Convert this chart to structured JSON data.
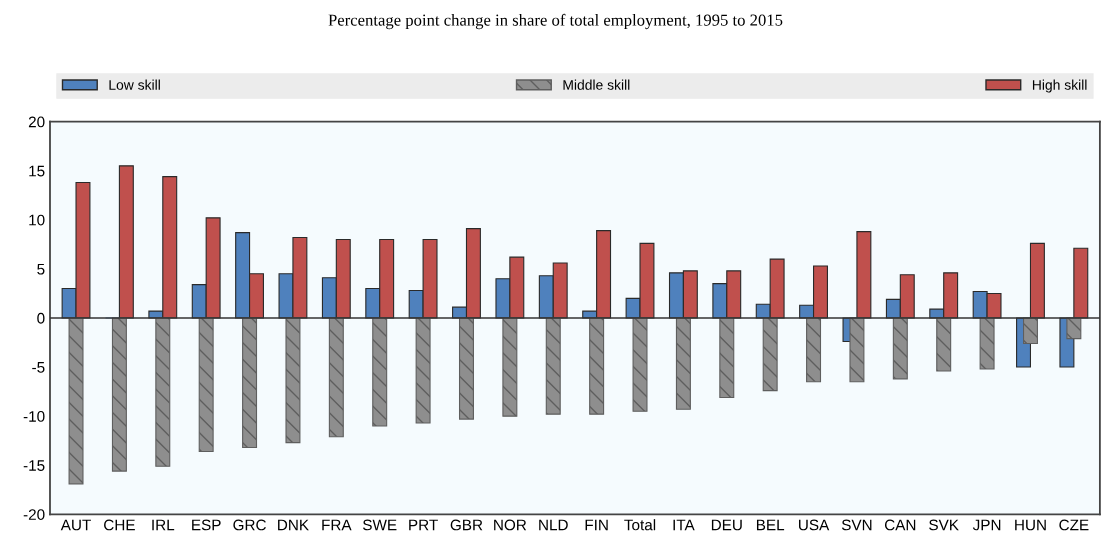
{
  "chart_data": {
    "type": "bar",
    "title": "Percentage point change in share of total employment, 1995 to 2015",
    "categories": [
      "AUT",
      "CHE",
      "IRL",
      "ESP",
      "GRC",
      "DNK",
      "FRA",
      "SWE",
      "PRT",
      "GBR",
      "NOR",
      "NLD",
      "FIN",
      "Total",
      "ITA",
      "DEU",
      "BEL",
      "USA",
      "SVN",
      "CAN",
      "SVK",
      "JPN",
      "HUN",
      "CZE"
    ],
    "series": [
      {
        "name": "Low skill",
        "color": "#4f81bd",
        "values": [
          3.0,
          0,
          0.7,
          3.4,
          8.7,
          4.5,
          4.1,
          3.0,
          2.8,
          1.1,
          4.0,
          4.3,
          0.7,
          2.0,
          4.6,
          3.5,
          1.4,
          1.3,
          -2.4,
          1.9,
          0.9,
          2.7,
          -5.0,
          -5.0
        ]
      },
      {
        "name": "Middle skill",
        "color": "#5e5e5e",
        "values": [
          -16.9,
          -15.6,
          -15.1,
          -13.6,
          -13.2,
          -12.7,
          -12.1,
          -11.0,
          -10.7,
          -10.3,
          -10.0,
          -9.8,
          -9.8,
          -9.5,
          -9.3,
          -8.1,
          -7.4,
          -6.5,
          -6.5,
          -6.2,
          -5.4,
          -5.2,
          -2.6,
          -2.1
        ]
      },
      {
        "name": "High skill",
        "color": "#c0504d",
        "values": [
          13.8,
          15.5,
          14.4,
          10.2,
          4.5,
          8.2,
          8.0,
          8.0,
          8.0,
          9.1,
          6.2,
          5.6,
          8.9,
          7.6,
          4.8,
          4.8,
          6.0,
          5.3,
          8.8,
          4.4,
          4.6,
          2.5,
          7.6,
          7.1
        ]
      }
    ],
    "ylim": [
      -20,
      20
    ],
    "yticks": [
      -20,
      -15,
      -10,
      -5,
      0,
      5,
      10,
      15,
      20
    ],
    "ref_lines": [
      {
        "axis": "y",
        "value": 0,
        "color": "#333333"
      }
    ],
    "grid": false,
    "legend": "top"
  }
}
